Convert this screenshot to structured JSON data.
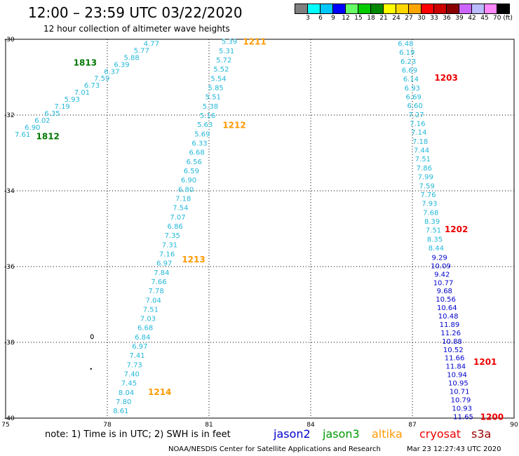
{
  "title": "12:00 – 23:59 UTC 03/22/2020",
  "subtitle": "12 hour collection of altimeter wave heights",
  "colorbar": {
    "colors": [
      "#7f7f7f",
      "#00ffff",
      "#00c8ff",
      "#0000ff",
      "#66ff66",
      "#00cc00",
      "#008800",
      "#ffff00",
      "#ffd700",
      "#ffa500",
      "#ff0000",
      "#cc0000",
      "#880000",
      "#cc66ff",
      "#bbbbff",
      "#ff88ff",
      "#000000"
    ],
    "labels": [
      "3",
      "6",
      "9",
      "12",
      "15",
      "18",
      "21",
      "24",
      "27",
      "30",
      "33",
      "36",
      "39",
      "42",
      "45",
      "70 (ft)"
    ]
  },
  "map": {
    "lon_ticks": [
      "75",
      "78",
      "81",
      "84",
      "87",
      "90"
    ],
    "lat_ticks": [
      "-30",
      "-32",
      "-34",
      "-36",
      "-38",
      "-40"
    ],
    "lon_range": [
      75,
      90
    ],
    "lat_range": [
      -40,
      -30
    ]
  },
  "tracks": [
    {
      "labels": [
        "4.77",
        "5.77",
        "5.88",
        "6.39",
        "6.37",
        "7.59",
        "6.73",
        "7.01",
        "5.93",
        "7.19",
        "6.35",
        "6.02",
        "6.90",
        "7.61"
      ],
      "start_lon": 79.3,
      "start_lat": -30.1,
      "end_lon": 75.5,
      "end_lat": -32.5,
      "color": "#22b8d8"
    },
    {
      "labels": [
        "5.39",
        "5.31",
        "5.72",
        "5.52",
        "5.54",
        "5.85",
        "5.51",
        "5.38",
        "5.16",
        "5.63",
        "5.69",
        "6.33",
        "6.68",
        "6.56",
        "6.59",
        "6.90",
        "6.80",
        "7.18",
        "7.54",
        "7.07",
        "6.86",
        "7.35",
        "7.31",
        "7.16",
        "6.97",
        "7.84",
        "7.66",
        "7.78",
        "7.04",
        "7.51",
        "7.03",
        "6.68",
        "6.84",
        "6.97",
        "7.41",
        "7.73",
        "7.40",
        "7.45",
        "8.04",
        "7.80",
        "8.61"
      ],
      "start_lon": 81.6,
      "start_lat": -30.05,
      "end_lon": 78.4,
      "end_lat": -39.8,
      "color": "#22b8d8"
    },
    {
      "labels": [
        "6.48",
        "6.19",
        "6.23",
        "6.69",
        "6.14",
        "6.93",
        "6.69",
        "6.60",
        "7.27",
        "7.16",
        "7.14",
        "7.18",
        "7.44",
        "7.51",
        "7.86",
        "7.99",
        "7.59",
        "7.76",
        "7.93",
        "7.68",
        "8.39",
        "7.51",
        "8.35",
        "8.44"
      ],
      "start_lon": 86.8,
      "start_lat": -30.1,
      "end_lon": 87.7,
      "end_lat": -35.5,
      "color": "#22b8d8"
    },
    {
      "labels": [
        "9.29",
        "10.09",
        "9.42",
        "10.77",
        "9.68",
        "10.56",
        "10.64",
        "10.48",
        "11.89",
        "11.26",
        "10.88",
        "10.52",
        "11.66",
        "11.84",
        "10.94",
        "10.95",
        "10.71",
        "10.79",
        "10.93",
        "11.65"
      ],
      "start_lon": 87.8,
      "start_lat": -35.75,
      "end_lon": 88.5,
      "end_lat": -39.95,
      "color": "#0000cc"
    }
  ],
  "time_labels": [
    {
      "text": "1813",
      "lon": 77.0,
      "lat": -30.6,
      "color": "#007700"
    },
    {
      "text": "1812",
      "lon": 75.9,
      "lat": -32.55,
      "color": "#007700"
    },
    {
      "text": "1211",
      "lon": 82.0,
      "lat": -30.05,
      "color": "#ff9900"
    },
    {
      "text": "1212",
      "lon": 81.4,
      "lat": -32.25,
      "color": "#ff9900"
    },
    {
      "text": "1213",
      "lon": 80.2,
      "lat": -35.8,
      "color": "#ff9900"
    },
    {
      "text": "1214",
      "lon": 79.2,
      "lat": -39.3,
      "color": "#ff9900"
    },
    {
      "text": "1203",
      "lon": 87.65,
      "lat": -31.0,
      "color": "#ee0000"
    },
    {
      "text": "1202",
      "lon": 87.95,
      "lat": -35.0,
      "color": "#ee0000"
    },
    {
      "text": "1201",
      "lon": 88.8,
      "lat": -38.5,
      "color": "#ee0000"
    },
    {
      "text": "1200",
      "lon": 89.0,
      "lat": -39.95,
      "color": "#ee0000"
    }
  ],
  "note": "note:  1) Time is in UTC;  2) SWH is in feet",
  "legend": [
    {
      "name": "jason2",
      "color": "#0000cc"
    },
    {
      "name": "jason3",
      "color": "#009900"
    },
    {
      "name": "altika",
      "color": "#ff9900"
    },
    {
      "name": "cryosat",
      "color": "#ee0000"
    },
    {
      "name": "s3a",
      "color": "#990000"
    }
  ],
  "credit": "NOAA/NESDIS Center for Satellite Applications and Research",
  "timestamp": "Mar 23 12:27:43 UTC 2020"
}
